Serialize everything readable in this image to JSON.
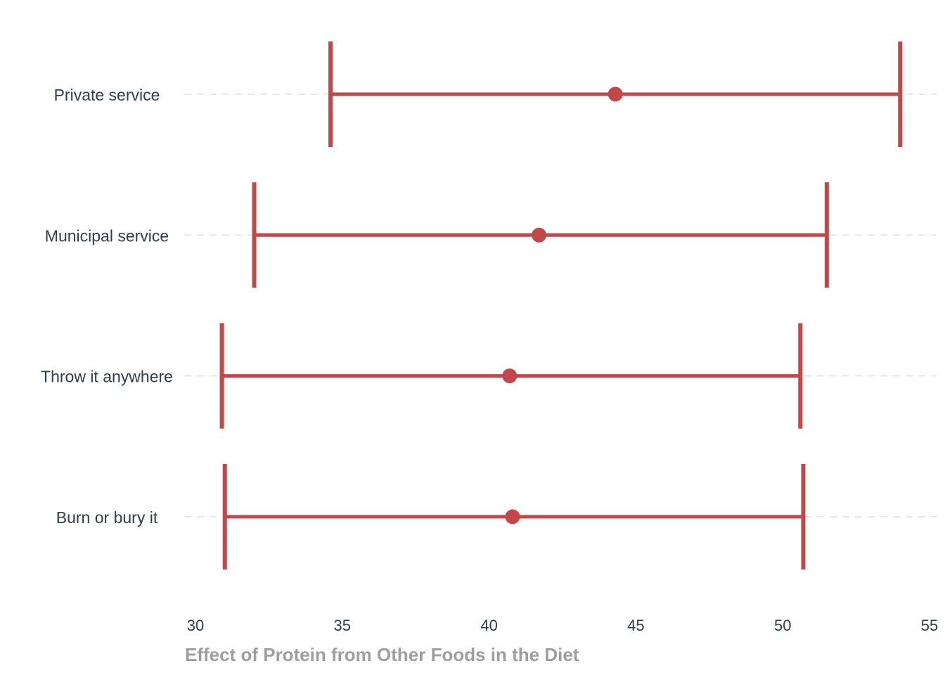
{
  "chart_data": {
    "type": "errorbar",
    "title": "",
    "xlabel": "Effect of Protein from Other Foods in the Diet",
    "ylabel": "",
    "xlim": [
      30,
      55
    ],
    "xticks": [
      30,
      35,
      40,
      45,
      50,
      55
    ],
    "grid": "horizontal-dashed",
    "color": "#c0474a",
    "categories": [
      "Private service",
      "Municipal service",
      "Throw it anywhere",
      "Burn or bury it"
    ],
    "estimates": [
      44.3,
      41.7,
      40.7,
      40.8
    ],
    "lower": [
      34.6,
      32.0,
      30.9,
      31.0
    ],
    "upper": [
      54.0,
      51.5,
      50.6,
      50.7
    ]
  }
}
